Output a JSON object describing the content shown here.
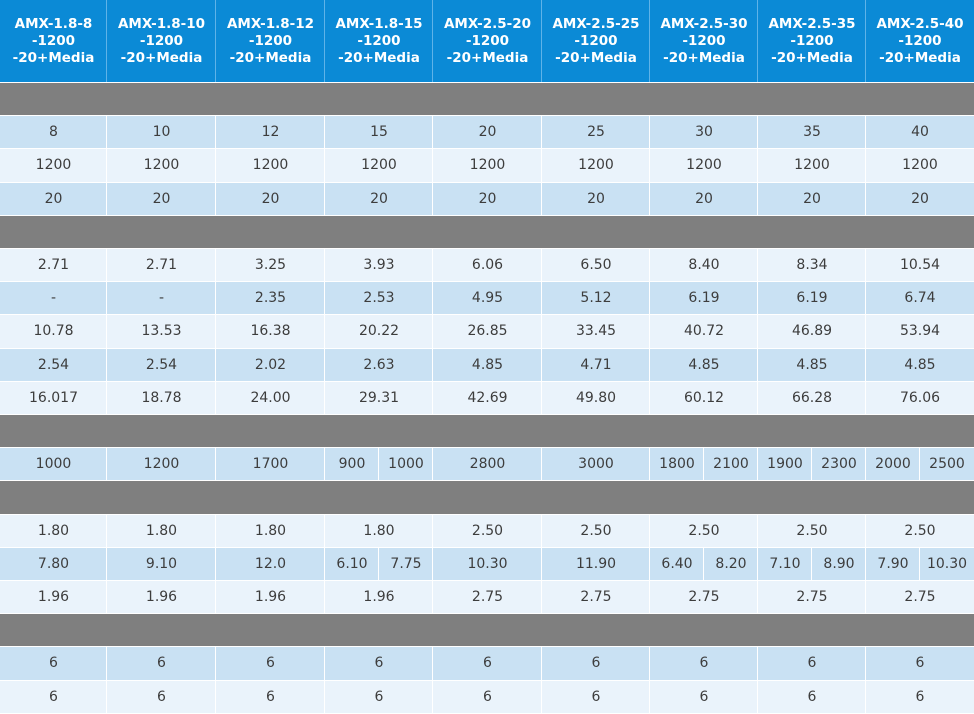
{
  "colors": {
    "header": "#0b8ad6",
    "band": "#7f7f7f",
    "row_dark": "#c9e1f3",
    "row_light": "#eaf3fb",
    "text": "#3d3d3d"
  },
  "header": [
    "AMX-1.8-8\n-1200\n-20+Media",
    "AMX-1.8-10\n-1200\n-20+Media",
    "AMX-1.8-12\n-1200\n-20+Media",
    "AMX-1.8-15\n-1200\n-20+Media",
    "AMX-2.5-20\n-1200\n-20+Media",
    "AMX-2.5-25\n-1200\n-20+Media",
    "AMX-2.5-30\n-1200\n-20+Media",
    "AMX-2.5-35\n-1200\n-20+Media",
    "AMX-2.5-40\n-1200\n-20+Media"
  ],
  "rows": [
    {
      "type": "band"
    },
    {
      "type": "data",
      "shade": "dark",
      "cells": [
        "8",
        "10",
        "12",
        "15",
        "20",
        "25",
        "30",
        "35",
        "40"
      ]
    },
    {
      "type": "data",
      "shade": "light",
      "cells": [
        "1200",
        "1200",
        "1200",
        "1200",
        "1200",
        "1200",
        "1200",
        "1200",
        "1200"
      ]
    },
    {
      "type": "data",
      "shade": "dark",
      "cells": [
        "20",
        "20",
        "20",
        "20",
        "20",
        "20",
        "20",
        "20",
        "20"
      ]
    },
    {
      "type": "band"
    },
    {
      "type": "data",
      "shade": "light",
      "cells": [
        "2.71",
        "2.71",
        "3.25",
        "3.93",
        "6.06",
        "6.50",
        "8.40",
        "8.34",
        "10.54"
      ]
    },
    {
      "type": "data",
      "shade": "dark",
      "cells": [
        "-",
        "-",
        "2.35",
        "2.53",
        "4.95",
        "5.12",
        "6.19",
        "6.19",
        "6.74"
      ]
    },
    {
      "type": "data",
      "shade": "light",
      "cells": [
        "10.78",
        "13.53",
        "16.38",
        "20.22",
        "26.85",
        "33.45",
        "40.72",
        "46.89",
        "53.94"
      ]
    },
    {
      "type": "data",
      "shade": "dark",
      "cells": [
        "2.54",
        "2.54",
        "2.02",
        "2.63",
        "4.85",
        "4.71",
        "4.85",
        "4.85",
        "4.85"
      ]
    },
    {
      "type": "data",
      "shade": "light",
      "cells": [
        "16.017",
        "18.78",
        "24.00",
        "29.31",
        "42.69",
        "49.80",
        "60.12",
        "66.28",
        "76.06"
      ]
    },
    {
      "type": "band"
    },
    {
      "type": "data",
      "shade": "dark",
      "cells": [
        "1000",
        "1200",
        "1700",
        [
          "900",
          "1000"
        ],
        "2800",
        "3000",
        [
          "1800",
          "2100"
        ],
        [
          "1900",
          "2300"
        ],
        [
          "2000",
          "2500"
        ]
      ]
    },
    {
      "type": "band"
    },
    {
      "type": "data",
      "shade": "light",
      "cells": [
        "1.80",
        "1.80",
        "1.80",
        "1.80",
        "2.50",
        "2.50",
        "2.50",
        "2.50",
        "2.50"
      ]
    },
    {
      "type": "data",
      "shade": "dark",
      "cells": [
        "7.80",
        "9.10",
        "12.0",
        [
          "6.10",
          "7.75"
        ],
        "10.30",
        "11.90",
        [
          "6.40",
          "8.20"
        ],
        [
          "7.10",
          "8.90"
        ],
        [
          "7.90",
          "10.30"
        ]
      ]
    },
    {
      "type": "data",
      "shade": "light",
      "cells": [
        "1.96",
        "1.96",
        "1.96",
        "1.96",
        "2.75",
        "2.75",
        "2.75",
        "2.75",
        "2.75"
      ]
    },
    {
      "type": "band"
    },
    {
      "type": "data",
      "shade": "dark",
      "cells": [
        "6",
        "6",
        "6",
        "6",
        "6",
        "6",
        "6",
        "6",
        "6"
      ]
    },
    {
      "type": "data",
      "shade": "light",
      "cells": [
        "6",
        "6",
        "6",
        "6",
        "6",
        "6",
        "6",
        "6",
        "6"
      ]
    }
  ]
}
